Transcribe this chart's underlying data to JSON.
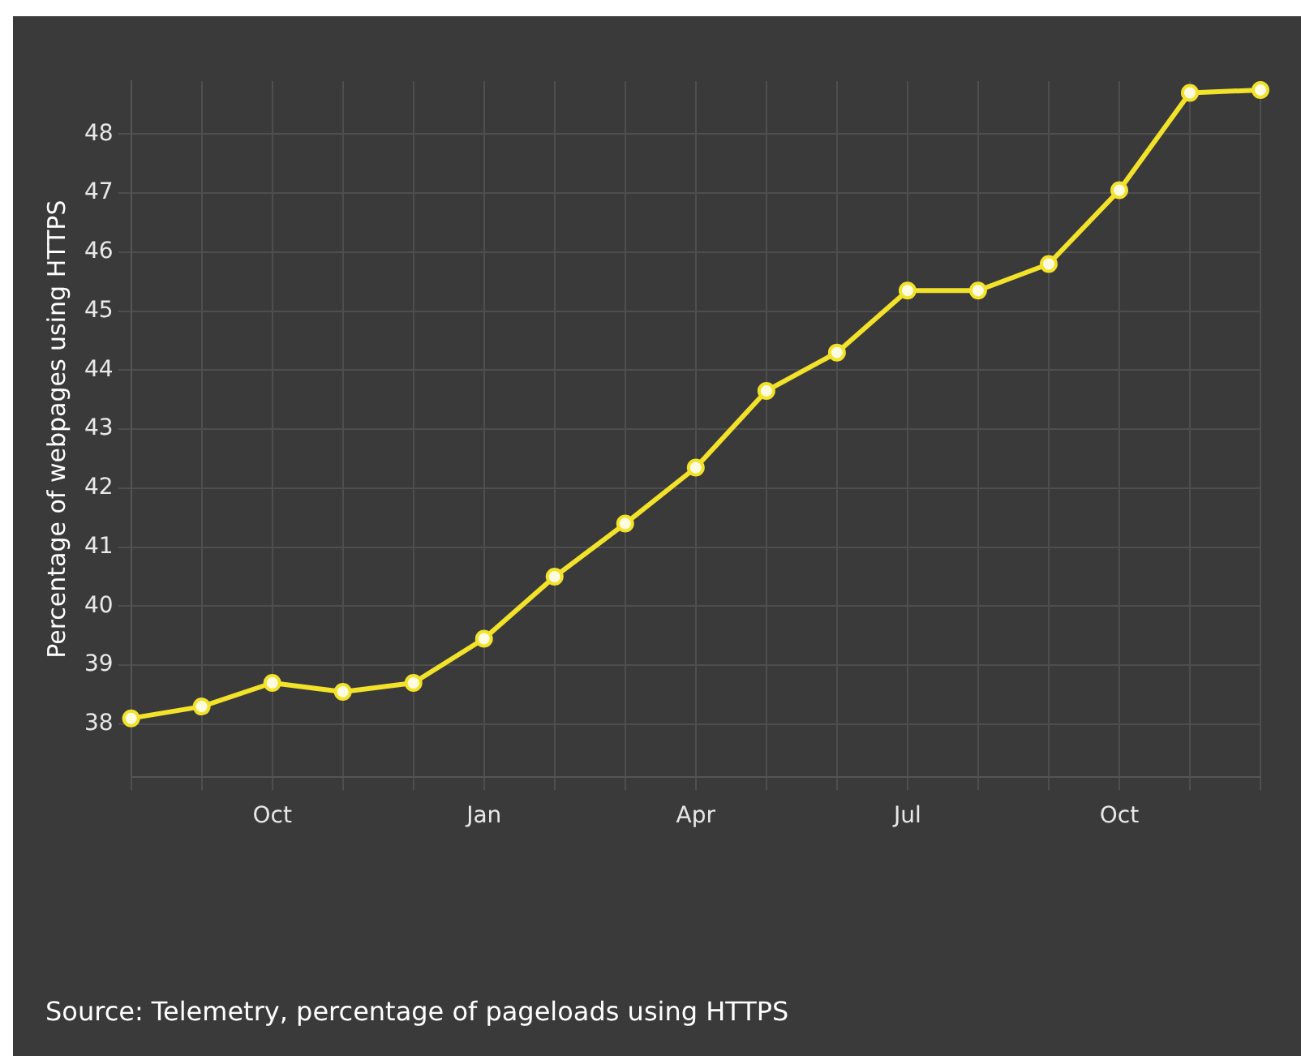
{
  "chart_data": {
    "type": "line",
    "ylabel": "Percentage of webpages using HTTPS",
    "categories": [
      null,
      null,
      "Oct",
      null,
      null,
      "Jan",
      null,
      null,
      "Apr",
      null,
      null,
      "Jul",
      null,
      null,
      "Oct",
      null,
      null
    ],
    "series": [
      {
        "color": "#f2e229",
        "values": [
          38.1,
          38.3,
          38.7,
          38.55,
          38.7,
          39.45,
          40.5,
          41.4,
          42.35,
          43.65,
          44.3,
          45.35,
          45.35,
          45.8,
          47.05,
          48.7,
          48.75
        ]
      }
    ],
    "ylim": [
      37.1,
      48.9
    ],
    "yticks": [
      38,
      39,
      40,
      41,
      42,
      43,
      44,
      45,
      46,
      47,
      48
    ],
    "grid": true,
    "legend": false,
    "marker": "circle",
    "line_style": "solid",
    "annotations": [
      "Source: Telemetry, percentage of pageloads using HTTPS"
    ]
  }
}
